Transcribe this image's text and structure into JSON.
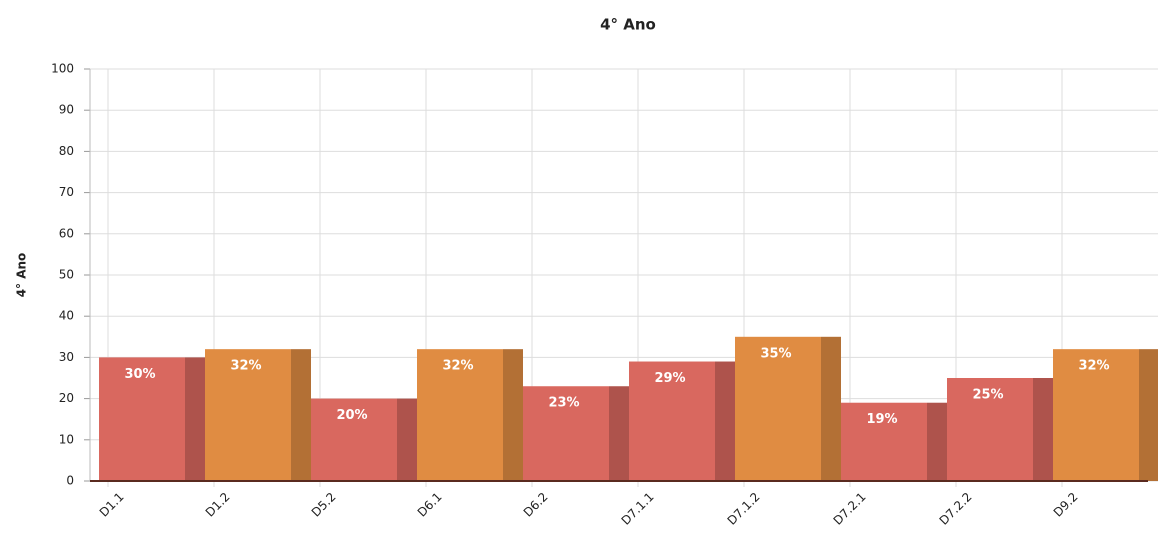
{
  "chart_data": {
    "type": "bar",
    "title": "4° Ano",
    "y_label": "4° Ano",
    "categories": [
      "D1.1",
      "D1.2",
      "D5.2",
      "D6.1",
      "D6.2",
      "D7.1.1",
      "D7.1.2",
      "D7.2.1",
      "D7.2.2",
      "D9.2"
    ],
    "values": [
      30,
      32,
      20,
      32,
      23,
      29,
      35,
      19,
      25,
      32
    ],
    "value_labels": [
      "30%",
      "32%",
      "20%",
      "32%",
      "23%",
      "29%",
      "35%",
      "19%",
      "25%",
      "32%"
    ],
    "colors": [
      "#d9685f",
      "#e08c42",
      "#d9685f",
      "#e08c42",
      "#d9685f",
      "#d9685f",
      "#e08c42",
      "#d9685f",
      "#d9685f",
      "#e08c42"
    ],
    "ylim": [
      0,
      100
    ],
    "yticks": [
      0,
      10,
      20,
      30,
      40,
      50,
      60,
      70,
      80,
      90,
      100
    ],
    "grid": true
  }
}
